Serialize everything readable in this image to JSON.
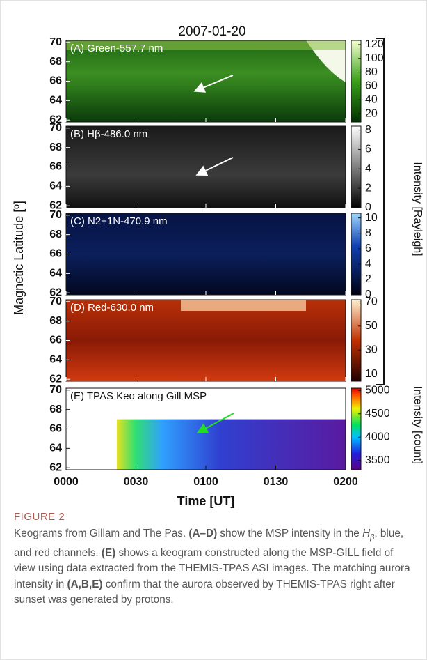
{
  "figure": {
    "title": "2007-01-20",
    "y_label": "Magnetic Latitude [º]",
    "x_label": "Time [UT]",
    "x_ticks": [
      "0000",
      "0030",
      "0100",
      "0130",
      "0200"
    ],
    "ylim": [
      61.8,
      70.2
    ],
    "yticks": [
      62,
      64,
      66,
      68,
      70
    ],
    "colorbar_label_top": "Intensity [Rayleigh]",
    "colorbar_label_bottom": "Intensity [count]",
    "panels": [
      {
        "label": "(A) Green-557.7 nm",
        "clim": [
          8,
          126
        ],
        "cticks": [
          20,
          40,
          60,
          80,
          100,
          120
        ]
      },
      {
        "label": "(B) Hβ-486.0 nm",
        "clim": [
          0,
          8.4
        ],
        "cticks": [
          0,
          2,
          4,
          6,
          8
        ]
      },
      {
        "label": "(C) N2+1N-470.9 nm",
        "clim": [
          0,
          10.6
        ],
        "cticks": [
          0,
          2,
          4,
          6,
          8,
          10
        ]
      },
      {
        "label": "(D) Red-630.0 nm",
        "clim": [
          4,
          72
        ],
        "cticks": [
          10,
          30,
          50,
          70
        ]
      },
      {
        "label": "(E) TPAS Keo along Gill MSP",
        "clim": [
          3300,
          5050
        ],
        "cticks": [
          3500,
          4000,
          4500,
          5000
        ]
      }
    ]
  },
  "caption": {
    "figure_label": "FIGURE 2",
    "parts": [
      "Keograms from Gillam and The Pas. ",
      "(A–D)",
      " show the MSP intensity in the ",
      "H",
      "β",
      ", blue, and red channels. ",
      "(E)",
      " shows a keogram constructed along the MSP-GILL field of view using data extracted from the THEMIS-TPAS ASI images. The matching aurora intensity in ",
      "(A,B,E)",
      " confirm that the aurora observed by THEMIS-TPAS right after sunset was generated by protons."
    ]
  }
}
